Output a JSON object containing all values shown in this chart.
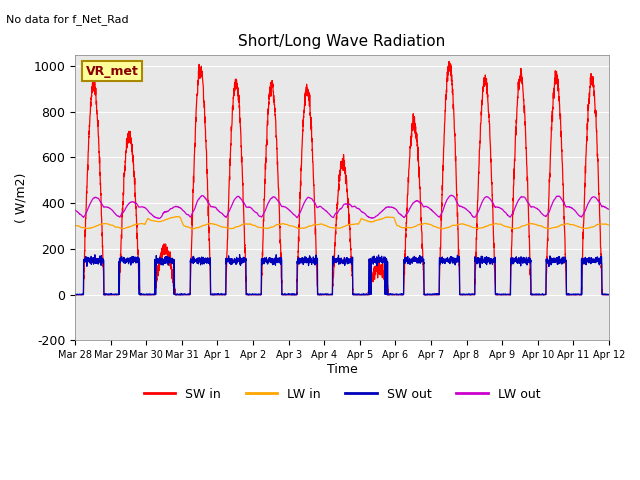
{
  "title": "Short/Long Wave Radiation",
  "ylabel": "( W/m2)",
  "xlabel": "Time",
  "top_left_text": "No data for f_Net_Rad",
  "legend_label_text": "VR_met",
  "ylim": [
    -200,
    1050
  ],
  "xlim": [
    0,
    360
  ],
  "xtick_labels": [
    "Mar 28",
    "Mar 29",
    "Mar 30",
    "Mar 31",
    "Apr 1",
    "Apr 2",
    "Apr 3",
    "Apr 4",
    "Apr 5",
    "Apr 6",
    "Apr 7",
    "Apr 8",
    "Apr 9",
    "Apr 10",
    "Apr 11",
    "Apr 12"
  ],
  "ytick_positions": [
    -200,
    0,
    200,
    400,
    600,
    800,
    1000
  ],
  "colors": {
    "SW_in": "#ff0000",
    "LW_in": "#ffa500",
    "SW_out": "#0000bb",
    "LW_out": "#cc00cc"
  },
  "background_color": "#e8e8e8",
  "legend_box_color": "#ffff99",
  "legend_box_border": "#aa8800",
  "sw_in_peaks": [
    920,
    700,
    200,
    990,
    930,
    920,
    900,
    580,
    120,
    750,
    1000,
    940,
    960,
    950,
    940
  ],
  "lw_base": 300,
  "lw_out_base": 360
}
